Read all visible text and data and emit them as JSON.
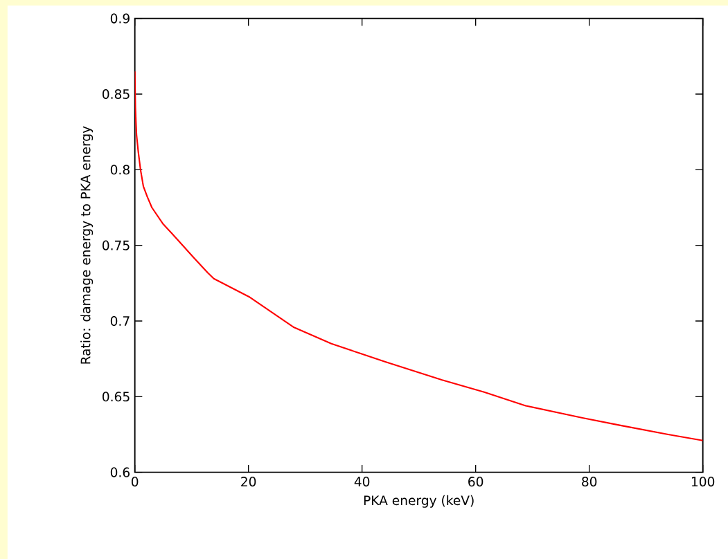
{
  "chart_data": {
    "type": "line",
    "xlabel": "PKA energy (keV)",
    "ylabel": "Ratio: damage energy to PKA energy",
    "x": [
      0,
      0.1,
      0.2,
      0.3,
      0.6,
      1.0,
      1.5,
      2.2,
      3.0,
      5.0,
      6.5,
      10.1,
      12.8,
      13.9,
      20.1,
      27.9,
      34.6,
      44.1,
      54.1,
      61.5,
      68.8,
      78.8,
      85.5,
      93.9,
      100
    ],
    "series": [
      {
        "color": "#ff0000",
        "values": [
          0.865,
          0.841,
          0.831,
          0.823,
          0.812,
          0.8,
          0.789,
          0.782,
          0.775,
          0.764,
          0.758,
          0.743,
          0.732,
          0.728,
          0.716,
          0.696,
          0.685,
          0.673,
          0.661,
          0.653,
          0.644,
          0.636,
          0.631,
          0.625,
          0.621
        ]
      }
    ],
    "xlim": [
      0,
      100
    ],
    "ylim": [
      0.6,
      0.9
    ],
    "xticks": [
      0,
      20,
      40,
      60,
      80,
      100
    ],
    "yticks": [
      0.6,
      0.65,
      0.7,
      0.75,
      0.8,
      0.85,
      0.9
    ],
    "grid": false,
    "marker": "none",
    "line_style": "solid"
  }
}
